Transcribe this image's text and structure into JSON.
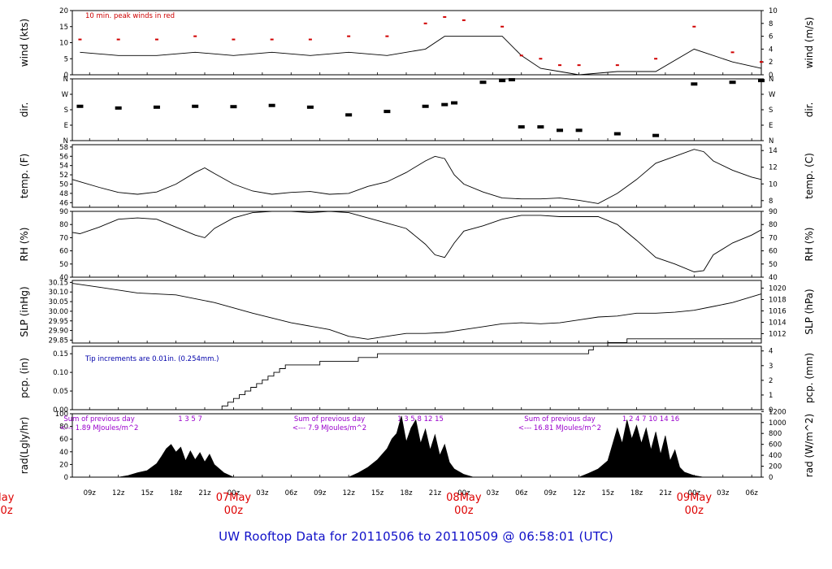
{
  "title": "UW Rooftop Data for 20110506  to  20110509 @ 06:58:01  (UTC)",
  "time_axis": {
    "hour_ticks": [
      "09z",
      "12z",
      "15z",
      "18z",
      "21z",
      "00z",
      "03z",
      "06z",
      "09z",
      "12z",
      "15z",
      "18z",
      "21z",
      "00z",
      "03z",
      "06z",
      "09z",
      "12z",
      "15z",
      "18z",
      "21z",
      "00z",
      "03z",
      "06z"
    ],
    "day_labels": [
      {
        "day": "May",
        "hour": "00z"
      },
      {
        "day": "07May",
        "hour": "00z"
      },
      {
        "day": "08May",
        "hour": "00z"
      },
      {
        "day": "09May",
        "hour": "00z"
      }
    ]
  },
  "panels": {
    "wind": {
      "left_label": "wind (kts)",
      "right_label": "wind (m/s)",
      "note": "10 min. peak winds in red",
      "left_ticks": [
        "0",
        "5",
        "10",
        "15",
        "20"
      ],
      "right_ticks": [
        "0",
        "2",
        "4",
        "6",
        "8",
        "10"
      ]
    },
    "dir": {
      "left_label": "dir.",
      "right_label": "dir.",
      "left_ticks": [
        "N",
        "E",
        "S",
        "W",
        "N"
      ],
      "right_ticks": [
        "N",
        "E",
        "S",
        "W",
        "N"
      ]
    },
    "temp": {
      "left_label": "temp. (F)",
      "right_label": "temp. (C)",
      "left_ticks": [
        "46",
        "48",
        "50",
        "52",
        "54",
        "56",
        "58"
      ],
      "right_ticks": [
        "8",
        "10",
        "12",
        "14"
      ]
    },
    "rh": {
      "left_label": "RH (%)",
      "right_label": "RH (%)",
      "left_ticks": [
        "40",
        "50",
        "60",
        "70",
        "80",
        "90"
      ],
      "right_ticks": [
        "40",
        "50",
        "60",
        "70",
        "80",
        "90"
      ]
    },
    "slp": {
      "left_label": "SLP (inHg)",
      "right_label": "SLP (hPa)",
      "left_ticks": [
        "29.85",
        "29.90",
        "29.95",
        "30.00",
        "30.05",
        "30.10",
        "30.15"
      ],
      "right_ticks": [
        "1012",
        "1014",
        "1016",
        "1018",
        "1020"
      ]
    },
    "pcp": {
      "left_label": "pcp. (in)",
      "right_label": "pcp. (mm)",
      "note": "Tip increments are 0.01in. (0.254mm.)",
      "left_ticks": [
        "0.00",
        "0.05",
        "0.10",
        "0.15"
      ],
      "right_ticks": [
        "0",
        "1",
        "2",
        "3",
        "4"
      ]
    },
    "rad": {
      "left_label": "rad(Lgly/hr)",
      "right_label": "rad (W/m^2)",
      "left_ticks": [
        "0",
        "20",
        "40",
        "60",
        "80",
        "100"
      ],
      "right_ticks": [
        "0",
        "200",
        "400",
        "600",
        "800",
        "1000",
        "1200"
      ],
      "daily_notes": [
        {
          "line1": "Sum of previous day",
          "line2": "<--- 1.89 MJoules/m^2",
          "hours": "1   3   5   7"
        },
        {
          "line1": "Sum of previous day",
          "line2": "<--- 7.9 MJoules/m^2",
          "hours": "1   3   5   8   12   15"
        },
        {
          "line1": "Sum of previous day",
          "line2": "<--- 16.81 MJoules/m^2",
          "hours": "1   2   4   7   10   14   16"
        }
      ]
    }
  },
  "chart_data": {
    "type": "line",
    "x_unit": "hours since 20110506 00z",
    "x_range": [
      7.2,
      79
    ],
    "series": [
      {
        "panel": "wind",
        "unit": "kts",
        "x": [
          8,
          12,
          16,
          20,
          24,
          28,
          32,
          36,
          40,
          44,
          46,
          48,
          52,
          54,
          56,
          58,
          60,
          64,
          68,
          72,
          76,
          79
        ],
        "y": [
          7,
          6,
          6,
          7,
          6,
          7,
          6,
          7,
          6,
          8,
          12,
          12,
          12,
          6,
          2,
          1,
          0,
          1,
          1,
          8,
          4,
          2
        ]
      },
      {
        "panel": "wind",
        "name": "10 min. peak winds",
        "unit": "kts",
        "x": [
          8,
          12,
          16,
          20,
          24,
          28,
          32,
          36,
          40,
          44,
          46,
          48,
          52,
          54,
          56,
          58,
          60,
          64,
          68,
          72,
          76,
          79
        ],
        "y": [
          11,
          11,
          11,
          12,
          11,
          11,
          11,
          12,
          12,
          16,
          18,
          17,
          15,
          6,
          5,
          3,
          3,
          3,
          5,
          15,
          7,
          4
        ]
      },
      {
        "panel": "dir",
        "unit": "deg",
        "x": [
          8,
          12,
          16,
          20,
          24,
          28,
          32,
          36,
          40,
          44,
          46,
          47,
          50,
          52,
          53,
          54,
          56,
          58,
          60,
          64,
          68,
          72,
          76,
          79
        ],
        "y": [
          200,
          190,
          195,
          200,
          198,
          205,
          195,
          150,
          170,
          200,
          210,
          220,
          340,
          350,
          355,
          80,
          80,
          60,
          60,
          40,
          30,
          330,
          340,
          350
        ]
      },
      {
        "panel": "temp",
        "unit": "F",
        "x": [
          7.2,
          8,
          10,
          12,
          14,
          16,
          18,
          20,
          21,
          22,
          24,
          26,
          28,
          30,
          32,
          34,
          36,
          38,
          40,
          42,
          44,
          45,
          46,
          47,
          48,
          50,
          52,
          54,
          56,
          58,
          60,
          62,
          64,
          66,
          68,
          70,
          72,
          73,
          74,
          76,
          78,
          79
        ],
        "y": [
          51,
          50.5,
          49.3,
          48.2,
          47.8,
          48.3,
          50,
          52.5,
          53.5,
          52.3,
          50,
          48.5,
          47.8,
          48.2,
          48.4,
          47.8,
          48,
          49.5,
          50.5,
          52.5,
          55,
          56,
          55.5,
          52,
          50,
          48.3,
          47,
          46.8,
          46.8,
          47,
          46.5,
          45.8,
          48,
          51,
          54.5,
          56,
          57.5,
          57,
          55,
          53,
          51.5,
          51
        ]
      },
      {
        "panel": "rh",
        "unit": "%",
        "x": [
          7.2,
          8,
          10,
          12,
          14,
          16,
          18,
          20,
          21,
          22,
          24,
          26,
          28,
          30,
          32,
          34,
          36,
          38,
          40,
          42,
          44,
          45,
          46,
          47,
          48,
          50,
          52,
          54,
          56,
          58,
          60,
          62,
          64,
          66,
          68,
          70,
          72,
          73,
          74,
          76,
          78,
          79
        ],
        "y": [
          74,
          73,
          78,
          84,
          85,
          84,
          78,
          72,
          70,
          77,
          85,
          89,
          90,
          90,
          89,
          90,
          89,
          85,
          81,
          77,
          65,
          57,
          55,
          66,
          75,
          79,
          84,
          87,
          87,
          86,
          86,
          86,
          80,
          68,
          55,
          50,
          44,
          45,
          57,
          66,
          72,
          76
        ]
      },
      {
        "panel": "slp",
        "unit": "inHg",
        "x": [
          7.2,
          10,
          14,
          18,
          22,
          26,
          30,
          34,
          36,
          38,
          40,
          42,
          44,
          46,
          48,
          50,
          52,
          54,
          56,
          58,
          60,
          62,
          64,
          66,
          68,
          70,
          72,
          74,
          76,
          79
        ],
        "y": [
          30.145,
          30.125,
          30.095,
          30.085,
          30.045,
          29.99,
          29.94,
          29.905,
          29.87,
          29.855,
          29.87,
          29.885,
          29.885,
          29.89,
          29.905,
          29.92,
          29.935,
          29.94,
          29.935,
          29.94,
          29.955,
          29.97,
          29.975,
          29.99,
          29.99,
          29.995,
          30.005,
          30.025,
          30.045,
          30.09
        ]
      },
      {
        "panel": "pcp",
        "unit": "in",
        "x": [
          7.2,
          22,
          22.8,
          23.4,
          24,
          24.6,
          25.2,
          25.8,
          26.4,
          27,
          27.6,
          28.2,
          28.8,
          29.4,
          30,
          31,
          33,
          34,
          36,
          37,
          38,
          39,
          40,
          50,
          52,
          60,
          61,
          61.5,
          62,
          63,
          64,
          65,
          66,
          79
        ],
        "y": [
          0,
          0,
          0.01,
          0.02,
          0.03,
          0.04,
          0.05,
          0.06,
          0.07,
          0.08,
          0.09,
          0.1,
          0.11,
          0.12,
          0.12,
          0.12,
          0.13,
          0.13,
          0.13,
          0.14,
          0.14,
          0.15,
          0.15,
          0.15,
          0.15,
          0.15,
          0.16,
          0.17,
          0.17,
          0.18,
          0.18,
          0.19,
          0.19,
          0.19
        ]
      },
      {
        "panel": "rad",
        "unit": "W/m^2",
        "x": [
          12,
          13,
          14,
          15,
          16,
          16.5,
          17,
          17.5,
          18,
          18.5,
          19,
          19.5,
          20,
          20.5,
          21,
          21.5,
          22,
          23,
          24,
          36,
          37,
          38,
          39,
          40,
          40.5,
          41,
          41.5,
          42,
          42.5,
          43,
          43.5,
          44,
          44.5,
          45,
          45.5,
          46,
          46.5,
          47,
          48,
          49,
          60,
          61,
          62,
          63,
          64,
          64.5,
          65,
          65.5,
          66,
          66.5,
          67,
          67.5,
          68,
          68.5,
          69,
          69.5,
          70,
          70.5,
          71,
          72,
          73
        ],
        "y": [
          0,
          30,
          80,
          120,
          250,
          380,
          520,
          600,
          460,
          550,
          300,
          480,
          320,
          450,
          280,
          420,
          230,
          80,
          0,
          0,
          80,
          180,
          320,
          520,
          700,
          800,
          1120,
          650,
          900,
          1050,
          620,
          880,
          500,
          780,
          400,
          600,
          270,
          150,
          50,
          0,
          0,
          70,
          150,
          300,
          900,
          620,
          1050,
          700,
          950,
          620,
          900,
          500,
          830,
          420,
          760,
          300,
          500,
          180,
          90,
          30,
          0
        ]
      }
    ]
  }
}
